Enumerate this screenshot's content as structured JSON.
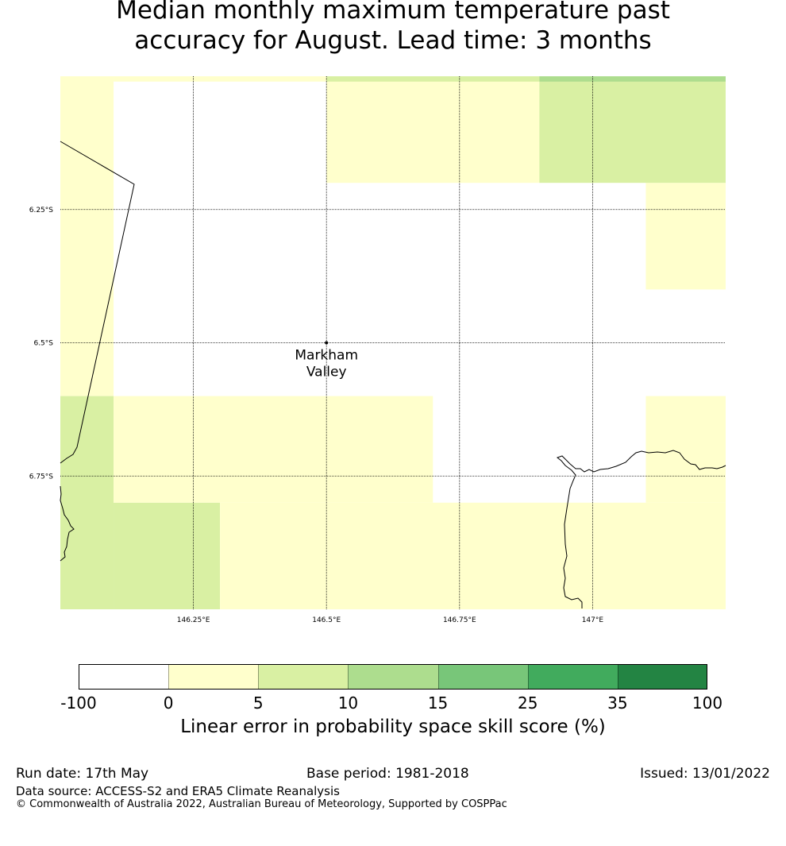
{
  "title": {
    "line1": "Median monthly maximum temperature past",
    "line2": "accuracy for August. Lead time: 3 months"
  },
  "map": {
    "lat_range_deg_south": [
      6.0,
      7.0
    ],
    "lon_range_deg_east": [
      146.0,
      147.25
    ],
    "lat_ticks": [
      "6.25°S",
      "6.5°S",
      "6.75°S"
    ],
    "lon_ticks": [
      "146.25°E",
      "146.5°E",
      "146.75°E",
      "147°E"
    ],
    "gridlines": true,
    "place": {
      "label_line1": "Markham",
      "label_line2": "Valley",
      "lat": -6.5,
      "lon": 146.5
    },
    "skill_cells": [
      {
        "lon_min": 146.0,
        "lon_max": 146.1,
        "lat_max": -6.0,
        "lat_min": -6.6,
        "category": "0-5"
      },
      {
        "lon_min": 146.0,
        "lon_max": 146.1,
        "lat_max": -6.6,
        "lat_min": -7.0,
        "category": "5-10"
      },
      {
        "lon_min": 146.1,
        "lon_max": 146.3,
        "lat_max": -6.8,
        "lat_min": -7.0,
        "category": "5-10"
      },
      {
        "lon_min": 146.1,
        "lon_max": 146.7,
        "lat_max": -6.6,
        "lat_min": -6.8,
        "category": "0-5"
      },
      {
        "lon_min": 146.3,
        "lon_max": 147.25,
        "lat_max": -6.8,
        "lat_min": -7.0,
        "category": "0-5"
      },
      {
        "lon_min": 147.1,
        "lon_max": 147.25,
        "lat_max": -6.6,
        "lat_min": -6.8,
        "category": "0-5"
      },
      {
        "lon_min": 147.1,
        "lon_max": 147.25,
        "lat_max": -6.2,
        "lat_min": -6.4,
        "category": "0-5"
      },
      {
        "lon_min": 146.5,
        "lon_max": 146.9,
        "lat_max": -6.0,
        "lat_min": -6.2,
        "category": "0-5"
      },
      {
        "lon_min": 146.9,
        "lon_max": 147.25,
        "lat_max": -6.0,
        "lat_min": -6.2,
        "category": "5-10"
      },
      {
        "lon_min": 146.1,
        "lon_max": 146.5,
        "lat_max": -6.0,
        "lat_min": -6.01,
        "category": "0-5"
      },
      {
        "lon_min": 146.5,
        "lon_max": 146.9,
        "lat_max": -6.0,
        "lat_min": -6.01,
        "category": "5-10"
      },
      {
        "lon_min": 146.9,
        "lon_max": 147.25,
        "lat_max": -6.0,
        "lat_min": -6.01,
        "category": "10-15"
      }
    ]
  },
  "legend": {
    "title": "Linear error in probability space skill score (%)",
    "bounds": [
      "-100",
      "0",
      "5",
      "10",
      "15",
      "25",
      "35",
      "100"
    ],
    "colors": [
      "#ffffff",
      "#ffffcc",
      "#d9f0a3",
      "#addd8e",
      "#78c679",
      "#41ab5d",
      "#238443"
    ],
    "categories": [
      "-100-0",
      "0-5",
      "5-10",
      "10-15",
      "15-25",
      "25-35",
      "35-100"
    ]
  },
  "footer": {
    "run_date": "Run date: 17th May",
    "base_period": "Base period: 1981-2018",
    "issued": "Issued: 13/01/2022",
    "data_source": "Data source: ACCESS-S2 and ERA5 Climate Reanalysis",
    "copyright": "© Commonwealth of Australia 2022, Australian Bureau of Meteorology, Supported by COSPPac"
  }
}
